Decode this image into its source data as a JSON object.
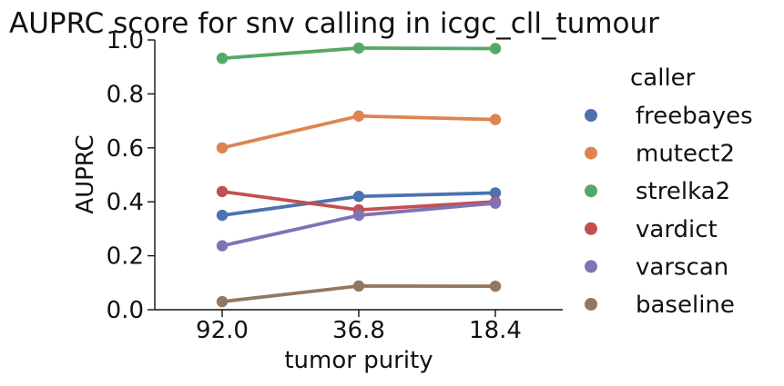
{
  "chart_data": {
    "type": "line",
    "title": "AUPRC score for snv calling in icgc_cll_tumour",
    "xlabel": "tumor purity",
    "ylabel": "AUPRC",
    "categories": [
      "92.0",
      "36.8",
      "18.4"
    ],
    "ylim": [
      0.0,
      1.0
    ],
    "yticks": [
      "0.0",
      "0.2",
      "0.4",
      "0.6",
      "0.8",
      "1.0"
    ],
    "grid": false,
    "legend": {
      "title": "caller",
      "placement": "right"
    },
    "series": [
      {
        "name": "freebayes",
        "color": "#4c72b0",
        "values": [
          0.35,
          0.42,
          0.433
        ]
      },
      {
        "name": "mutect2",
        "color": "#dd8452",
        "values": [
          0.6,
          0.718,
          0.705
        ]
      },
      {
        "name": "strelka2",
        "color": "#55a868",
        "values": [
          0.932,
          0.97,
          0.968
        ]
      },
      {
        "name": "vardict",
        "color": "#c44e52",
        "values": [
          0.438,
          0.37,
          0.4
        ]
      },
      {
        "name": "varscan",
        "color": "#8172b3",
        "values": [
          0.237,
          0.35,
          0.395
        ]
      },
      {
        "name": "baseline",
        "color": "#937860",
        "values": [
          0.03,
          0.088,
          0.087
        ]
      }
    ]
  }
}
